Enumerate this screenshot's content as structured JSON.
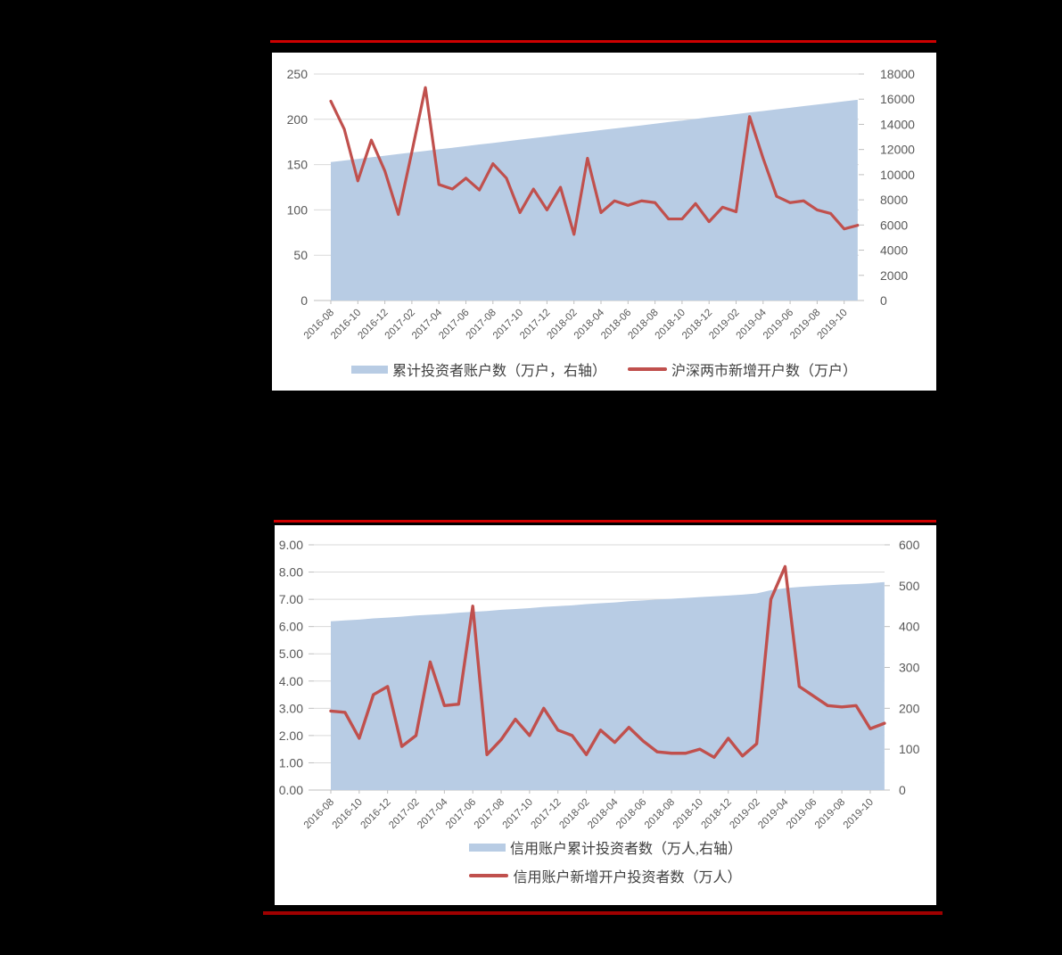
{
  "page": {
    "background_color": "#000000",
    "panel_color": "#FFFFFF",
    "accent_rule_color_top": "#CE0000",
    "accent_rule_color_bottom": "#A00000"
  },
  "chart_data": [
    {
      "type": "area+line combo",
      "title": "",
      "x": [
        "2016-08",
        "2016-09",
        "2016-10",
        "2016-11",
        "2016-12",
        "2017-01",
        "2017-02",
        "2017-03",
        "2017-04",
        "2017-05",
        "2017-06",
        "2017-07",
        "2017-08",
        "2017-09",
        "2017-10",
        "2017-11",
        "2017-12",
        "2018-01",
        "2018-02",
        "2018-03",
        "2018-04",
        "2018-05",
        "2018-06",
        "2018-07",
        "2018-08",
        "2018-09",
        "2018-10",
        "2018-11",
        "2018-12",
        "2019-01",
        "2019-02",
        "2019-03",
        "2019-04",
        "2019-05",
        "2019-06",
        "2019-07",
        "2019-08",
        "2019-09",
        "2019-10",
        "2019-11"
      ],
      "x_tick_labels": [
        "2016-08",
        "2016-10",
        "2016-12",
        "2017-02",
        "2017-04",
        "2017-06",
        "2017-08",
        "2017-10",
        "2017-12",
        "2018-02",
        "2018-04",
        "2018-06",
        "2018-08",
        "2018-10",
        "2018-12",
        "2019-02",
        "2019-04",
        "2019-06",
        "2019-08",
        "2019-10"
      ],
      "series": [
        {
          "name": "累计投资者账户数（万户，右轴）",
          "type": "area",
          "axis": "right",
          "color": "#B8CCE4",
          "values": [
            11000,
            11130,
            11250,
            11380,
            11510,
            11640,
            11760,
            11890,
            12020,
            12140,
            12270,
            12400,
            12520,
            12650,
            12780,
            12910,
            13030,
            13160,
            13290,
            13410,
            13540,
            13670,
            13790,
            13920,
            14050,
            14180,
            14300,
            14430,
            14560,
            14680,
            14810,
            14940,
            15060,
            15190,
            15320,
            15450,
            15570,
            15700,
            15830,
            15950
          ]
        },
        {
          "name": "沪深两市新增开户数（万户）",
          "type": "line",
          "axis": "left",
          "color": "#C0504D",
          "values": [
            220,
            189,
            132,
            177,
            143,
            95,
            164,
            235,
            128,
            123,
            135,
            122,
            151,
            135,
            97,
            123,
            100,
            125,
            73,
            157,
            97,
            110,
            105,
            110,
            108,
            90,
            90,
            107,
            87,
            103,
            98,
            203,
            157,
            115,
            108,
            110,
            100,
            96,
            79,
            83
          ]
        }
      ],
      "left_axis": {
        "min": 0,
        "max": 250,
        "step": 50,
        "tick_labels": [
          "0",
          "50",
          "100",
          "150",
          "200",
          "250"
        ]
      },
      "right_axis": {
        "min": 0,
        "max": 18000,
        "step": 2000,
        "tick_labels": [
          "0",
          "2000",
          "4000",
          "6000",
          "8000",
          "10000",
          "12000",
          "14000",
          "16000",
          "18000"
        ]
      },
      "grid": true,
      "legend_position": "bottom"
    },
    {
      "type": "area+line combo",
      "title": "",
      "x": [
        "2016-08",
        "2016-09",
        "2016-10",
        "2016-11",
        "2016-12",
        "2017-01",
        "2017-02",
        "2017-03",
        "2017-04",
        "2017-05",
        "2017-06",
        "2017-07",
        "2017-08",
        "2017-09",
        "2017-10",
        "2017-11",
        "2017-12",
        "2018-01",
        "2018-02",
        "2018-03",
        "2018-04",
        "2018-05",
        "2018-06",
        "2018-07",
        "2018-08",
        "2018-09",
        "2018-10",
        "2018-11",
        "2018-12",
        "2019-01",
        "2019-02",
        "2019-03",
        "2019-04",
        "2019-05",
        "2019-06",
        "2019-07",
        "2019-08",
        "2019-09",
        "2019-10",
        "2019-11"
      ],
      "x_tick_labels": [
        "2016-08",
        "2016-10",
        "2016-12",
        "2017-02",
        "2017-04",
        "2017-06",
        "2017-08",
        "2017-10",
        "2017-12",
        "2018-02",
        "2018-04",
        "2018-06",
        "2018-08",
        "2018-10",
        "2018-12",
        "2019-02",
        "2019-04",
        "2019-06",
        "2019-08",
        "2019-10"
      ],
      "series": [
        {
          "name": "信用账户累计投资者数（万人,右轴）",
          "type": "area",
          "axis": "right",
          "color": "#B8CCE4",
          "values": [
            413,
            415,
            417,
            420,
            422,
            424,
            427,
            429,
            431,
            434,
            436,
            438,
            441,
            443,
            445,
            448,
            450,
            452,
            455,
            457,
            459,
            462,
            464,
            466,
            468,
            470,
            472,
            474,
            476,
            478,
            481,
            489,
            494,
            497,
            499,
            501,
            503,
            504,
            506,
            509
          ]
        },
        {
          "name": "信用账户新增开户投资者数（万人）",
          "type": "line",
          "axis": "left",
          "color": "#C0504D",
          "values": [
            2.9,
            2.85,
            1.9,
            3.5,
            3.8,
            1.6,
            2.0,
            4.7,
            3.1,
            3.15,
            6.75,
            1.3,
            1.85,
            2.6,
            2.0,
            3.0,
            2.2,
            2.0,
            1.3,
            2.2,
            1.75,
            2.3,
            1.8,
            1.4,
            1.35,
            1.35,
            1.5,
            1.2,
            1.9,
            1.25,
            1.7,
            7.0,
            8.2,
            3.8,
            3.45,
            3.1,
            3.05,
            3.1,
            2.25,
            2.45
          ]
        }
      ],
      "left_axis": {
        "min": 0,
        "max": 9,
        "step": 1,
        "tick_labels": [
          "0.00",
          "1.00",
          "2.00",
          "3.00",
          "4.00",
          "5.00",
          "6.00",
          "7.00",
          "8.00",
          "9.00"
        ]
      },
      "right_axis": {
        "min": 0,
        "max": 600,
        "step": 100,
        "tick_labels": [
          "0",
          "100",
          "200",
          "300",
          "400",
          "500",
          "600"
        ]
      },
      "grid": true,
      "legend_position": "bottom"
    }
  ]
}
